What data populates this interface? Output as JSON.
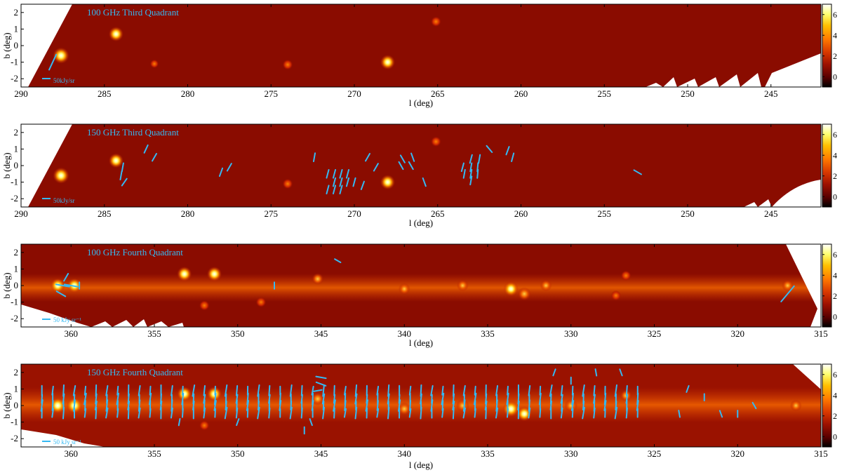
{
  "colors": {
    "background": "#8a0c00",
    "vector": "#35b9f2",
    "title": "#35b9f2",
    "colormap": [
      "#000000",
      "#5a0000",
      "#a01200",
      "#d83800",
      "#ff7a00",
      "#ffc000",
      "#ffff70",
      "#ffffff"
    ]
  },
  "panels": [
    {
      "title": "100 GHz Third Quadrant",
      "scale_label": "50kJy/sr",
      "xlabel": "l (deg)",
      "ylabel": "b (deg)",
      "xlim": [
        290,
        242
      ],
      "ylim": [
        -2.5,
        2.5
      ],
      "xticks": [
        "245",
        "250",
        "255",
        "260",
        "265",
        "270",
        "275",
        "280",
        "285",
        "290"
      ],
      "yticks": [
        "2",
        "1",
        "0",
        "-1",
        "-2"
      ],
      "colorbar_ticks": [
        "6",
        "4",
        "2",
        "0"
      ],
      "colorbar_range": [
        -1,
        7
      ]
    },
    {
      "title": "150 GHz Third Quadrant",
      "scale_label": "50kJy/sr",
      "xlabel": "l (deg)",
      "ylabel": "b (deg)",
      "xlim": [
        290,
        242
      ],
      "ylim": [
        -2.5,
        2.5
      ],
      "xticks": [
        "245",
        "250",
        "255",
        "260",
        "265",
        "270",
        "275",
        "280",
        "285",
        "290"
      ],
      "yticks": [
        "2",
        "1",
        "0",
        "-1",
        "-2"
      ],
      "colorbar_ticks": [
        "6",
        "4",
        "2",
        "0"
      ],
      "colorbar_range": [
        -1,
        7
      ]
    },
    {
      "title": "100 GHz Fourth Quadrant",
      "scale_label": "50 kJy sr⁻¹",
      "xlabel": "l (deg)",
      "ylabel": "b (deg)",
      "xlim": [
        363,
        315
      ],
      "ylim": [
        -2.5,
        2.5
      ],
      "xticks": [
        "315",
        "320",
        "325",
        "330",
        "335",
        "340",
        "345",
        "350",
        "355",
        "360"
      ],
      "yticks": [
        "2",
        "1",
        "0",
        "-1",
        "-2"
      ],
      "colorbar_ticks": [
        "6",
        "4",
        "2",
        "0"
      ],
      "colorbar_range": [
        -1,
        7
      ]
    },
    {
      "title": "150 GHz Fourth Quadrant",
      "scale_label": "50 kJy sr⁻¹",
      "xlabel": "l (deg)",
      "ylabel": "b (deg)",
      "xlim": [
        363,
        315
      ],
      "ylim": [
        -2.5,
        2.5
      ],
      "xticks": [
        "315",
        "320",
        "325",
        "330",
        "335",
        "340",
        "345",
        "350",
        "355",
        "360"
      ],
      "yticks": [
        "2",
        "1",
        "0",
        "-1",
        "-2"
      ],
      "colorbar_ticks": [
        "6",
        "4",
        "2",
        "0"
      ],
      "colorbar_range": [
        -1,
        7
      ]
    }
  ],
  "chart_data": [
    {
      "type": "heatmap",
      "title": "100 GHz Third Quadrant",
      "xlabel": "l (deg)",
      "ylabel": "b (deg)",
      "xlim": [
        290,
        242
      ],
      "ylim": [
        -2.5,
        2.5
      ],
      "colorbar": [
        -1,
        7
      ],
      "sources": [
        {
          "l": 268.0,
          "b": -1.0,
          "v": 6
        },
        {
          "l": 284.3,
          "b": 0.7,
          "v": 6
        },
        {
          "l": 287.6,
          "b": -0.6,
          "v": 7
        },
        {
          "l": 274.0,
          "b": -1.15,
          "v": 3
        },
        {
          "l": 265.1,
          "b": 1.45,
          "v": 3
        },
        {
          "l": 282.0,
          "b": -1.1,
          "v": 2
        }
      ],
      "vectors": [
        {
          "l": 288.1,
          "b": -1.0,
          "angle": 25,
          "len": 1.0
        }
      ]
    },
    {
      "type": "heatmap",
      "title": "150 GHz Third Quadrant",
      "xlabel": "l (deg)",
      "ylabel": "b (deg)",
      "xlim": [
        290,
        242
      ],
      "ylim": [
        -2.5,
        2.5
      ],
      "colorbar": [
        -1,
        7
      ],
      "sources": [
        {
          "l": 268.0,
          "b": -1.0,
          "v": 6
        },
        {
          "l": 284.3,
          "b": 0.3,
          "v": 6
        },
        {
          "l": 287.6,
          "b": -0.6,
          "v": 7
        },
        {
          "l": 274.0,
          "b": -1.1,
          "v": 3
        },
        {
          "l": 265.1,
          "b": 1.45,
          "v": 3
        }
      ],
      "vectors": [
        {
          "l": 253.0,
          "b": -0.4,
          "angle": -60,
          "len": 0.5
        },
        {
          "l": 260.8,
          "b": 0.9,
          "angle": 20,
          "len": 0.5
        },
        {
          "l": 261.9,
          "b": 1.0,
          "angle": -40,
          "len": 0.5
        },
        {
          "l": 260.5,
          "b": 0.5,
          "angle": 15,
          "len": 0.5
        },
        {
          "l": 262.5,
          "b": 0.4,
          "angle": 10,
          "len": 0.5
        },
        {
          "l": 263.0,
          "b": 0.4,
          "angle": 15,
          "len": 0.5
        },
        {
          "l": 262.6,
          "b": -0.1,
          "angle": 5,
          "len": 0.5
        },
        {
          "l": 263.0,
          "b": -0.1,
          "angle": 10,
          "len": 0.5
        },
        {
          "l": 263.5,
          "b": -0.1,
          "angle": 15,
          "len": 0.5
        },
        {
          "l": 262.6,
          "b": -0.5,
          "angle": 5,
          "len": 0.5
        },
        {
          "l": 263.0,
          "b": -0.5,
          "angle": 10,
          "len": 0.5
        },
        {
          "l": 263.4,
          "b": -0.5,
          "angle": 10,
          "len": 0.5
        },
        {
          "l": 263.0,
          "b": -0.9,
          "angle": 10,
          "len": 0.5
        },
        {
          "l": 265.8,
          "b": -1.0,
          "angle": -20,
          "len": 0.5
        },
        {
          "l": 266.5,
          "b": 0.5,
          "angle": -20,
          "len": 0.5
        },
        {
          "l": 267.1,
          "b": 0.4,
          "angle": -30,
          "len": 0.5
        },
        {
          "l": 266.6,
          "b": 0.0,
          "angle": -30,
          "len": 0.5
        },
        {
          "l": 267.2,
          "b": 0.0,
          "angle": -30,
          "len": 0.5
        },
        {
          "l": 268.7,
          "b": -0.1,
          "angle": 30,
          "len": 0.5
        },
        {
          "l": 269.2,
          "b": 0.5,
          "angle": 30,
          "len": 0.5
        },
        {
          "l": 269.5,
          "b": -1.2,
          "angle": 20,
          "len": 0.5
        },
        {
          "l": 270.0,
          "b": -1.0,
          "angle": 15,
          "len": 0.5
        },
        {
          "l": 270.4,
          "b": -0.5,
          "angle": 15,
          "len": 0.5
        },
        {
          "l": 270.8,
          "b": -0.5,
          "angle": 15,
          "len": 0.5
        },
        {
          "l": 271.2,
          "b": -0.5,
          "angle": 15,
          "len": 0.5
        },
        {
          "l": 270.4,
          "b": -1.0,
          "angle": 15,
          "len": 0.5
        },
        {
          "l": 270.8,
          "b": -1.0,
          "angle": 15,
          "len": 0.5
        },
        {
          "l": 271.2,
          "b": -1.0,
          "angle": 15,
          "len": 0.5
        },
        {
          "l": 271.6,
          "b": -0.5,
          "angle": 15,
          "len": 0.5
        },
        {
          "l": 270.8,
          "b": -1.45,
          "angle": 15,
          "len": 0.5
        },
        {
          "l": 271.2,
          "b": -1.45,
          "angle": 15,
          "len": 0.5
        },
        {
          "l": 271.6,
          "b": -1.45,
          "angle": 15,
          "len": 0.5
        },
        {
          "l": 272.4,
          "b": 0.5,
          "angle": 10,
          "len": 0.5
        },
        {
          "l": 277.5,
          "b": -0.1,
          "angle": 30,
          "len": 0.5
        },
        {
          "l": 278.0,
          "b": -0.4,
          "angle": 20,
          "len": 0.5
        },
        {
          "l": 282.0,
          "b": 0.5,
          "angle": 30,
          "len": 0.5
        },
        {
          "l": 282.5,
          "b": 1.0,
          "angle": 25,
          "len": 0.5
        },
        {
          "l": 283.9,
          "b": -0.1,
          "angle": 10,
          "len": 0.5
        },
        {
          "l": 284.0,
          "b": -0.6,
          "angle": 10,
          "len": 0.5
        },
        {
          "l": 283.8,
          "b": -1.0,
          "angle": 35,
          "len": 0.5
        }
      ]
    },
    {
      "type": "heatmap",
      "title": "100 GHz Fourth Quadrant",
      "xlabel": "l (deg)",
      "ylabel": "b (deg)",
      "xlim": [
        363,
        315
      ],
      "ylim": [
        -2.5,
        2.5
      ],
      "colorbar": [
        -1,
        7
      ],
      "sources": [
        {
          "l": 333.6,
          "b": -0.2,
          "v": 6
        },
        {
          "l": 332.8,
          "b": -0.5,
          "v": 5
        },
        {
          "l": 331.5,
          "b": 0.0,
          "v": 4
        },
        {
          "l": 336.5,
          "b": 0.0,
          "v": 4
        },
        {
          "l": 340.0,
          "b": -0.2,
          "v": 4
        },
        {
          "l": 351.4,
          "b": 0.7,
          "v": 6
        },
        {
          "l": 353.2,
          "b": 0.7,
          "v": 6
        },
        {
          "l": 359.8,
          "b": 0.0,
          "v": 6
        },
        {
          "l": 360.8,
          "b": 0.0,
          "v": 6
        },
        {
          "l": 345.2,
          "b": 0.4,
          "v": 4
        },
        {
          "l": 348.6,
          "b": -1.0,
          "v": 3
        },
        {
          "l": 327.3,
          "b": -0.6,
          "v": 3
        },
        {
          "l": 326.7,
          "b": 0.6,
          "v": 3
        },
        {
          "l": 352.0,
          "b": -1.2,
          "v": 3
        },
        {
          "l": 317.0,
          "b": 0.0,
          "v": 4
        }
      ],
      "vectors": [
        {
          "l": 317.0,
          "b": -0.5,
          "angle": 40,
          "len": 1.2
        },
        {
          "l": 344.0,
          "b": 1.5,
          "angle": -60,
          "len": 0.4
        },
        {
          "l": 347.8,
          "b": 0.0,
          "angle": 0,
          "len": 0.4
        },
        {
          "l": 359.5,
          "b": 0.0,
          "angle": 0,
          "len": 0.4
        },
        {
          "l": 360.0,
          "b": 0.0,
          "angle": -80,
          "len": 0.8
        },
        {
          "l": 360.5,
          "b": 0.0,
          "angle": -80,
          "len": 0.8
        },
        {
          "l": 360.3,
          "b": 0.5,
          "angle": 30,
          "len": 0.5
        },
        {
          "l": 360.6,
          "b": -0.5,
          "angle": -60,
          "len": 0.6
        }
      ]
    },
    {
      "type": "heatmap",
      "title": "150 GHz Fourth Quadrant",
      "xlabel": "l (deg)",
      "ylabel": "b (deg)",
      "xlim": [
        363,
        315
      ],
      "ylim": [
        -2.5,
        2.5
      ],
      "colorbar": [
        -1,
        7
      ],
      "sources": [
        {
          "l": 333.6,
          "b": -0.2,
          "v": 7
        },
        {
          "l": 332.8,
          "b": -0.5,
          "v": 6
        },
        {
          "l": 330.0,
          "b": 0.0,
          "v": 5
        },
        {
          "l": 336.5,
          "b": 0.0,
          "v": 5
        },
        {
          "l": 340.0,
          "b": -0.2,
          "v": 5
        },
        {
          "l": 351.4,
          "b": 0.7,
          "v": 6
        },
        {
          "l": 353.2,
          "b": 0.7,
          "v": 6
        },
        {
          "l": 359.8,
          "b": 0.0,
          "v": 7
        },
        {
          "l": 360.8,
          "b": 0.0,
          "v": 7
        },
        {
          "l": 345.2,
          "b": 0.4,
          "v": 5
        },
        {
          "l": 326.7,
          "b": 0.6,
          "v": 4
        },
        {
          "l": 316.5,
          "b": 0.0,
          "v": 4
        },
        {
          "l": 352.0,
          "b": -1.2,
          "v": 3
        }
      ],
      "vectors": [
        {
          "l": 319.0,
          "b": 0.0,
          "angle": -30,
          "len": 0.4
        },
        {
          "l": 320.0,
          "b": -0.5,
          "angle": 0,
          "len": 0.4
        },
        {
          "l": 321.0,
          "b": -0.5,
          "angle": -20,
          "len": 0.4
        },
        {
          "l": 322.0,
          "b": 0.5,
          "angle": 0,
          "len": 0.4
        },
        {
          "l": 323.0,
          "b": 1.0,
          "angle": 20,
          "len": 0.4
        },
        {
          "l": 323.5,
          "b": -0.5,
          "angle": -10,
          "len": 0.4
        },
        {
          "l": 327.0,
          "b": 2.0,
          "angle": -20,
          "len": 0.4
        },
        {
          "l": 328.5,
          "b": 2.0,
          "angle": -10,
          "len": 0.4
        },
        {
          "l": 330.0,
          "b": 1.5,
          "angle": 0,
          "len": 0.4
        },
        {
          "l": 331.0,
          "b": 2.0,
          "angle": 20,
          "len": 0.4
        },
        {
          "l": 345.0,
          "b": 1.7,
          "angle": -80,
          "len": 0.6
        },
        {
          "l": 345.0,
          "b": 1.3,
          "angle": -70,
          "len": 0.6
        },
        {
          "l": 345.2,
          "b": 0.9,
          "angle": 80,
          "len": 0.5
        },
        {
          "l": 346.0,
          "b": -1.5,
          "angle": 0,
          "len": 0.4
        },
        {
          "l": 345.6,
          "b": -1.0,
          "angle": -20,
          "len": 0.4
        },
        {
          "l": 350.0,
          "b": -1.0,
          "angle": 20,
          "len": 0.4
        },
        {
          "l": 353.5,
          "b": -1.0,
          "angle": 10,
          "len": 0.4
        }
      ],
      "vector_field": {
        "l_range": [
          326,
          362
        ],
        "b_rows": [
          0.9,
          0.4,
          0.0,
          -0.45
        ],
        "spacing_deg": 0.65,
        "angle": 5,
        "len": 0.5
      }
    }
  ]
}
